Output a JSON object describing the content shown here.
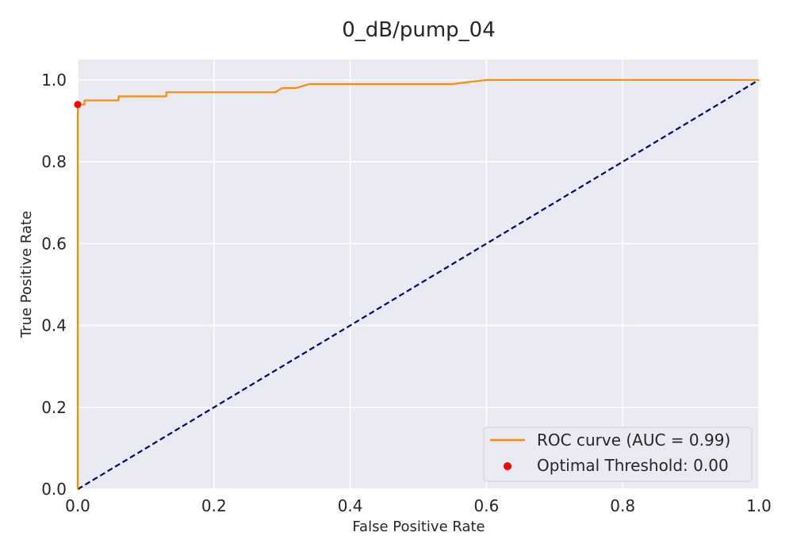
{
  "chart_data": {
    "type": "line",
    "title": "0_dB/pump_04",
    "xlabel": "False Positive Rate",
    "ylabel": "True Positive Rate",
    "xlim": [
      0.0,
      1.0
    ],
    "ylim": [
      0.0,
      1.05
    ],
    "x_ticks": [
      "0.0",
      "0.2",
      "0.4",
      "0.6",
      "0.8",
      "1.0"
    ],
    "y_ticks": [
      "0.0",
      "0.2",
      "0.4",
      "0.6",
      "0.8",
      "1.0"
    ],
    "grid": true,
    "legend_position": "bottom-right",
    "series": [
      {
        "name": "ROC curve (AUC = 0.99)",
        "kind": "line",
        "color": "#ff8c00",
        "x": [
          0.0,
          0.0,
          0.0,
          0.0,
          0.005,
          0.005,
          0.01,
          0.01,
          0.06,
          0.06,
          0.13,
          0.13,
          0.29,
          0.3,
          0.32,
          0.34,
          0.55,
          0.6,
          1.0
        ],
        "y": [
          0.0,
          0.93,
          0.94,
          0.94,
          0.94,
          0.94,
          0.94,
          0.95,
          0.95,
          0.96,
          0.96,
          0.97,
          0.97,
          0.98,
          0.98,
          0.99,
          0.99,
          1.0,
          1.0
        ]
      },
      {
        "name": "",
        "kind": "dashed-line",
        "color": "#000080",
        "x": [
          0.0,
          1.0
        ],
        "y": [
          0.0,
          1.0
        ]
      },
      {
        "name": "Optimal Threshold: 0.00",
        "kind": "scatter",
        "color": "#ff0000",
        "x": [
          0.0
        ],
        "y": [
          0.94
        ]
      }
    ]
  },
  "colors": {
    "plot_background": "#eaeaf2",
    "grid": "#ffffff",
    "roc_line": "#ff8c00",
    "diagonal": "#000080",
    "optimal_point": "#ff0000"
  }
}
